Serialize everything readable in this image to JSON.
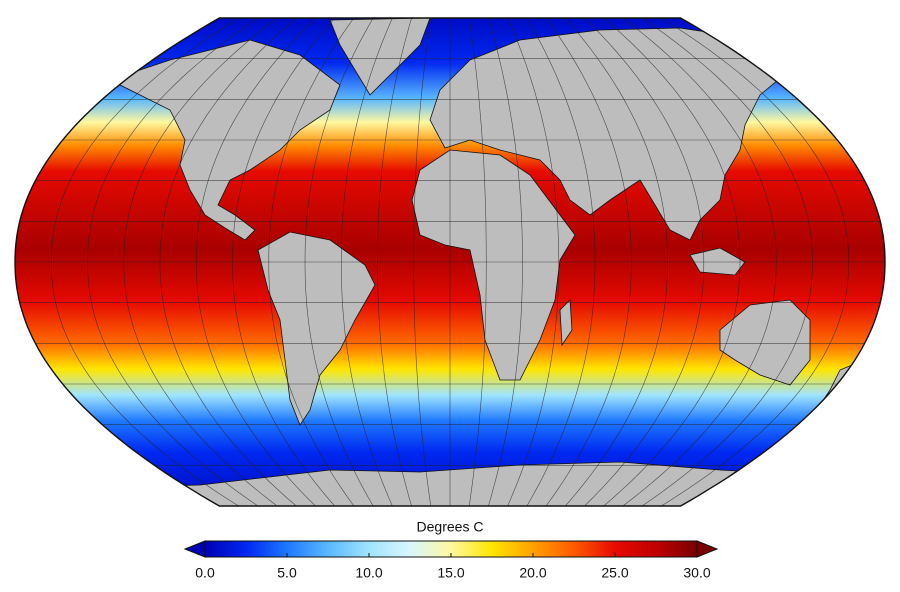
{
  "map": {
    "colorbar": {
      "title": "Degrees C",
      "lim": [
        0,
        30
      ],
      "ticks": [
        {
          "value": 0,
          "label": "0.0"
        },
        {
          "value": 5,
          "label": "5.0"
        },
        {
          "value": 10,
          "label": "10.0"
        },
        {
          "value": 15,
          "label": "15.0"
        },
        {
          "value": 20,
          "label": "20.0"
        },
        {
          "value": 25,
          "label": "25.0"
        },
        {
          "value": 30,
          "label": "30.0"
        }
      ],
      "colors": [
        "#0000b4",
        "#0028f0",
        "#1e78ff",
        "#5ab8ff",
        "#a0e4ff",
        "#d8f6ff",
        "#fff8a0",
        "#ffe600",
        "#ffa000",
        "#ff5a00",
        "#e60a00",
        "#c00000",
        "#780000"
      ]
    }
  }
}
